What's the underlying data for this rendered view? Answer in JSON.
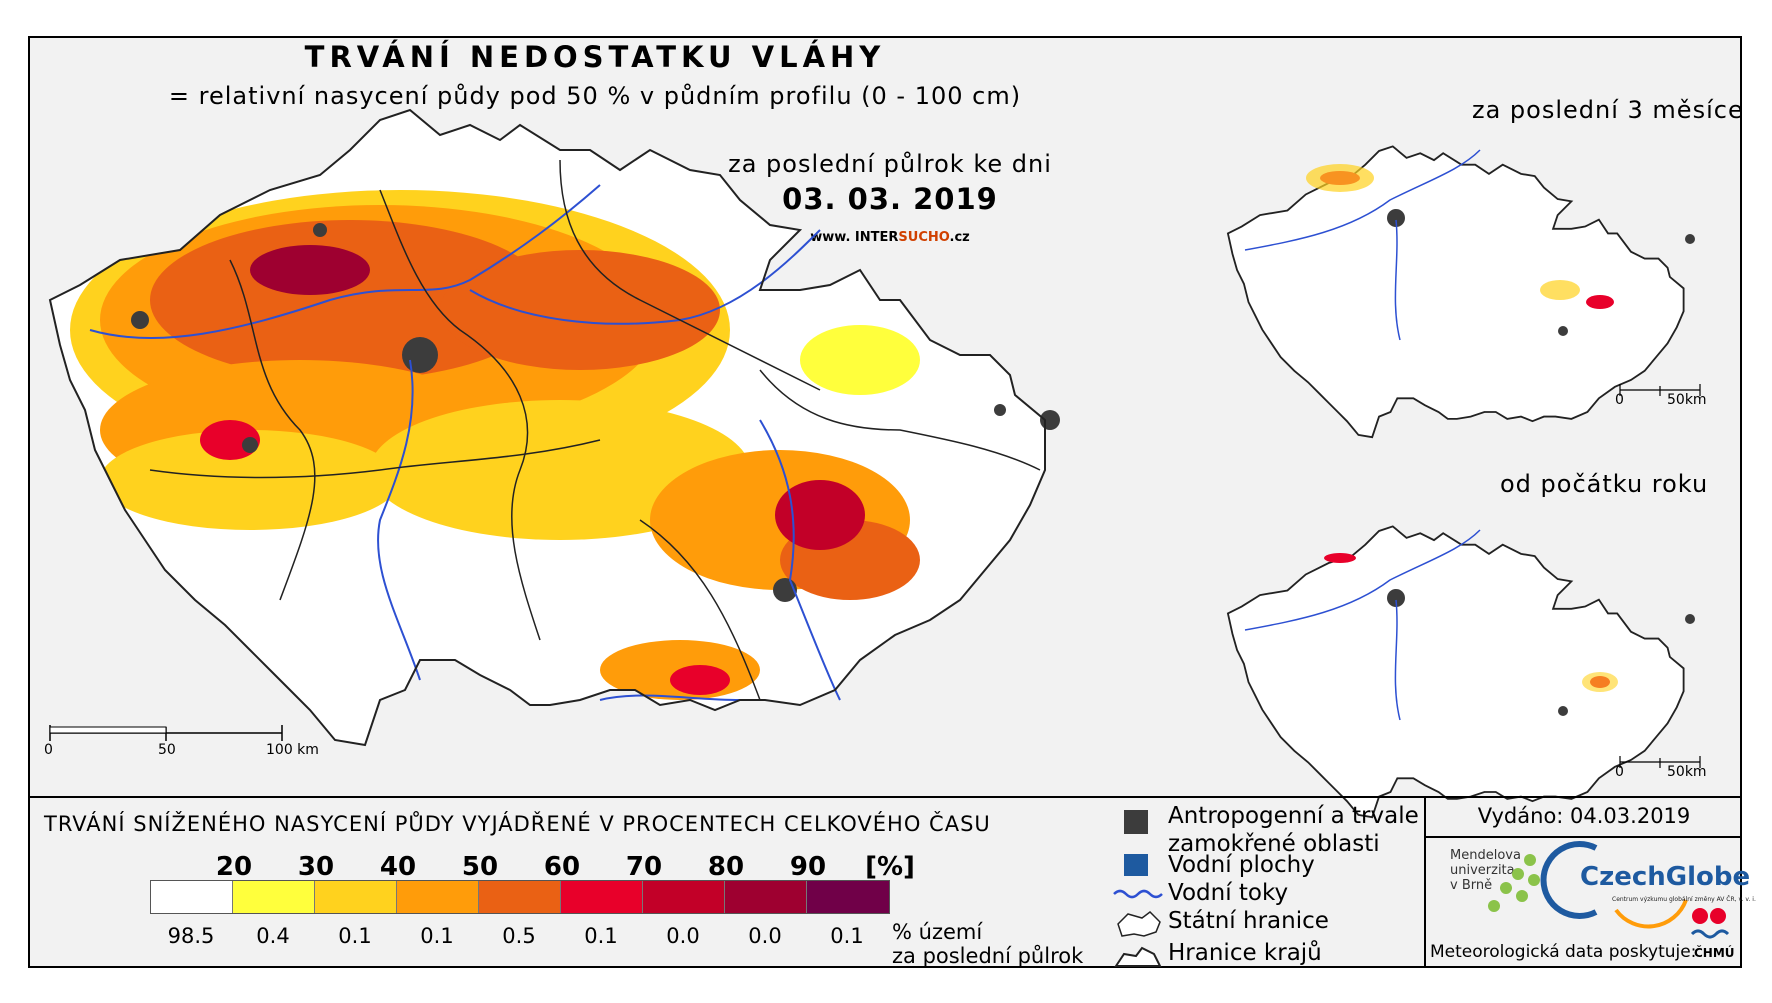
{
  "header": {
    "title": "TRVÁNÍ NEDOSTATKU VLÁHY",
    "subtitle": "= relativní nasycení půdy pod 50 % v půdním profilu (0 - 100 cm)",
    "period_label": "za poslední půlrok ke dni",
    "date": "03. 03. 2019",
    "website_prefix": "www. INTER",
    "website_highlight": "SUCHO",
    "website_suffix": ".cz"
  },
  "main_map": {
    "scale": [
      "0",
      "50",
      "100 km"
    ]
  },
  "insets": [
    {
      "title": "za poslední 3 měsíce",
      "scale": [
        "0",
        "50km"
      ]
    },
    {
      "title": "od počátku roku",
      "scale": [
        "0",
        "50km"
      ]
    }
  ],
  "legend": {
    "title": "TRVÁNÍ SNÍŽENÉHO NASYCENÍ PŮDY VYJÁDŘENÉ V PROCENTECH CELKOVÉHO ČASU",
    "thresholds": [
      "20",
      "30",
      "40",
      "50",
      "60",
      "70",
      "80",
      "90",
      "[%]"
    ],
    "colors": [
      "#ffffff",
      "#ffff3c",
      "#ffd21e",
      "#ff9c0a",
      "#ea6114",
      "#e8002a",
      "#c20028",
      "#9e0030",
      "#700048"
    ],
    "percentages": [
      "98.5",
      "0.4",
      "0.1",
      "0.1",
      "0.5",
      "0.1",
      "0.0",
      "0.0",
      "0.1"
    ],
    "percentages_label_line1": "% území",
    "percentages_label_line2": "za poslední půlrok"
  },
  "symbols": {
    "anthropogenic": "Antropogenní a trvale",
    "anthropogenic_line2": "zamokřené oblasti",
    "water_bodies": "Vodní plochy",
    "rivers": "Vodní toky",
    "state_border": "Státní hranice",
    "region_border": "Hranice krajů",
    "anthropogenic_color": "#3c3c3c",
    "water_color": "#1e5aa0",
    "river_color": "#2d50d2"
  },
  "footer": {
    "issued": "Vydáno: 04.03.2019",
    "mendel_line1": "Mendelova",
    "mendel_line2": "univerzita",
    "mendel_line3": "v Brně",
    "czechglobe": "CzechGlobe",
    "czechglobe_sub": "Centrum výzkumu globální změny AV ČR, v. v. i.",
    "meteo_label": "Meteorologická data poskytuje:",
    "chmu": "ČHMÚ"
  }
}
